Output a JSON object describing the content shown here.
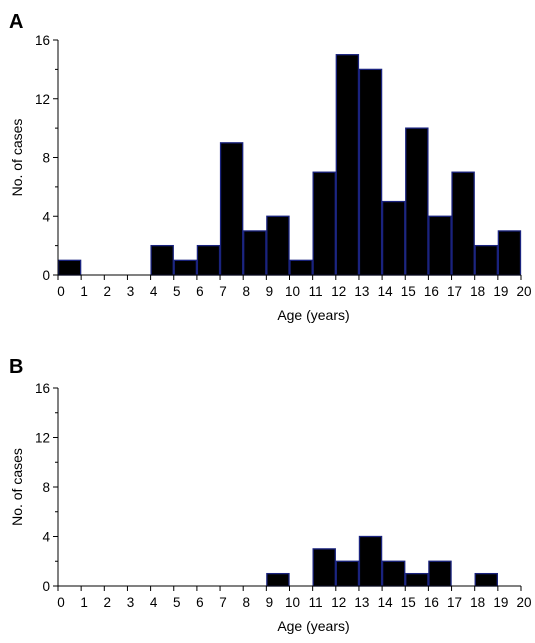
{
  "chart_data": [
    {
      "type": "bar",
      "panel_label": "A",
      "categories": [
        "0",
        "1",
        "2",
        "3",
        "4",
        "5",
        "6",
        "7",
        "8",
        "9",
        "10",
        "11",
        "12",
        "13",
        "14",
        "15",
        "16",
        "17",
        "18",
        "19"
      ],
      "values": [
        1,
        0,
        0,
        0,
        2,
        1,
        2,
        9,
        3,
        4,
        1,
        7,
        15,
        14,
        5,
        10,
        4,
        7,
        2,
        3
      ],
      "xticks": [
        "0",
        "1",
        "2",
        "3",
        "4",
        "5",
        "6",
        "7",
        "8",
        "9",
        "10",
        "11",
        "12",
        "13",
        "14",
        "15",
        "16",
        "17",
        "18",
        "19",
        "20"
      ],
      "yticks": [
        "0",
        "4",
        "8",
        "12",
        "16"
      ],
      "xlabel": "Age (years)",
      "ylabel": "No. of cases",
      "xlim": [
        0,
        20
      ],
      "ylim": [
        0,
        16
      ],
      "grid": false,
      "colors": {
        "bar_fill": "#000000",
        "bar_edge": "#1a237e",
        "axis": "#000000"
      }
    },
    {
      "type": "bar",
      "panel_label": "B",
      "categories": [
        "0",
        "1",
        "2",
        "3",
        "4",
        "5",
        "6",
        "7",
        "8",
        "9",
        "10",
        "11",
        "12",
        "13",
        "14",
        "15",
        "16",
        "17",
        "18",
        "19"
      ],
      "values": [
        0,
        0,
        0,
        0,
        0,
        0,
        0,
        0,
        0,
        1,
        0,
        3,
        2,
        4,
        2,
        1,
        2,
        0,
        1,
        0
      ],
      "xticks": [
        "0",
        "1",
        "2",
        "3",
        "4",
        "5",
        "6",
        "7",
        "8",
        "9",
        "10",
        "11",
        "12",
        "13",
        "14",
        "15",
        "16",
        "17",
        "18",
        "19",
        "20"
      ],
      "yticks": [
        "0",
        "4",
        "8",
        "12",
        "16"
      ],
      "xlabel": "Age (years)",
      "ylabel": "No. of cases",
      "xlim": [
        0,
        20
      ],
      "ylim": [
        0,
        16
      ],
      "grid": false,
      "colors": {
        "bar_fill": "#000000",
        "bar_edge": "#1a237e",
        "axis": "#000000"
      }
    }
  ]
}
